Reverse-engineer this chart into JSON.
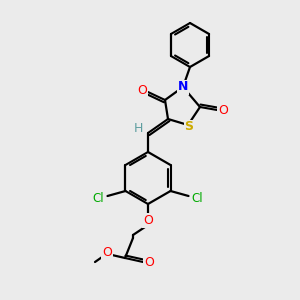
{
  "bg_color": "#ebebeb",
  "bond_color": "#000000",
  "atom_colors": {
    "O": "#ff0000",
    "N": "#0000ff",
    "S": "#ccaa00",
    "Cl": "#00aa00",
    "H": "#5f9ea0",
    "C": "#000000"
  },
  "figsize": [
    3.0,
    3.0
  ],
  "dpi": 100
}
